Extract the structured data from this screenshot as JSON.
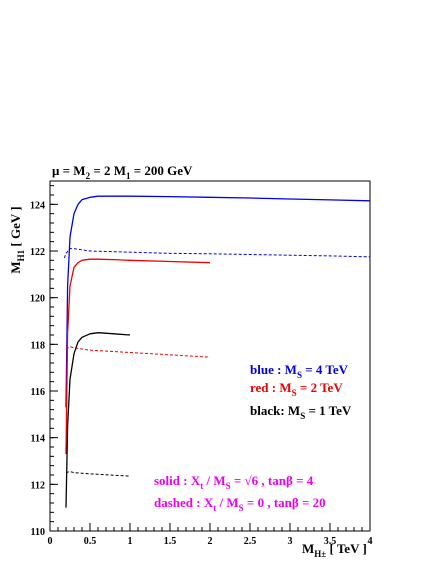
{
  "chart_data": {
    "type": "line",
    "title": "μ = M₂ = 2 M₁ = 200 GeV",
    "xlabel": "M_H± [ TeV ]",
    "ylabel": "M_H1 [ GeV ]",
    "xlim": [
      0,
      4
    ],
    "ylim": [
      110,
      125
    ],
    "xticks": [
      0,
      0.5,
      1,
      1.5,
      2,
      2.5,
      3,
      3.5,
      4
    ],
    "xtick_labels": [
      "0",
      "0.5",
      "1",
      "1.5",
      "2",
      "2.5",
      "3",
      "3.5",
      "4"
    ],
    "yticks": [
      110,
      112,
      114,
      116,
      118,
      120,
      122,
      124
    ],
    "ytick_labels": [
      "110",
      "112",
      "114",
      "116",
      "118",
      "120",
      "122",
      "124"
    ],
    "grid": false,
    "series": [
      {
        "color": "#0000ee",
        "style": "solid",
        "x": [
          0.2,
          0.22,
          0.25,
          0.3,
          0.35,
          0.4,
          0.5,
          0.6,
          0.8,
          1.0,
          1.5,
          2.0,
          2.5,
          3.0,
          3.5,
          4.0
        ],
        "y": [
          115.3,
          120.5,
          122.6,
          123.6,
          124.0,
          124.2,
          124.3,
          124.35,
          124.35,
          124.35,
          124.33,
          124.3,
          124.27,
          124.23,
          124.19,
          124.15
        ]
      },
      {
        "color": "#0000ee",
        "style": "dashed",
        "x": [
          0.18,
          0.2,
          0.25,
          0.3,
          0.5,
          1.0,
          1.5,
          2.0,
          2.5,
          3.0,
          3.5,
          4.0
        ],
        "y": [
          121.7,
          121.9,
          122.1,
          122.1,
          122.0,
          121.95,
          121.9,
          121.88,
          121.85,
          121.82,
          121.79,
          121.75
        ]
      },
      {
        "color": "#ee0000",
        "style": "solid",
        "x": [
          0.2,
          0.22,
          0.25,
          0.3,
          0.35,
          0.4,
          0.5,
          0.6,
          0.8,
          1.0,
          1.5,
          2.0
        ],
        "y": [
          113.3,
          118.5,
          120.5,
          121.3,
          121.5,
          121.6,
          121.65,
          121.65,
          121.63,
          121.6,
          121.55,
          121.5
        ]
      },
      {
        "color": "#ee0000",
        "style": "dashed",
        "x": [
          0.2,
          0.25,
          0.3,
          0.5,
          1.0,
          1.5,
          2.0
        ],
        "y": [
          117.8,
          117.9,
          117.85,
          117.75,
          117.65,
          117.55,
          117.45
        ]
      },
      {
        "color": "#000000",
        "style": "solid",
        "x": [
          0.2,
          0.22,
          0.25,
          0.3,
          0.35,
          0.4,
          0.5,
          0.6,
          0.8,
          1.0
        ],
        "y": [
          111.0,
          114.5,
          116.5,
          117.6,
          118.1,
          118.3,
          118.45,
          118.5,
          118.45,
          118.4
        ]
      },
      {
        "color": "#000000",
        "style": "dashed",
        "x": [
          0.2,
          0.25,
          0.3,
          0.5,
          0.75,
          1.0
        ],
        "y": [
          112.5,
          112.55,
          112.5,
          112.45,
          112.4,
          112.35
        ]
      }
    ],
    "annotations": [
      {
        "text": "blue : M_S = 4 TeV",
        "color": "#0000ee"
      },
      {
        "text": "red  : M_S = 2 TeV",
        "color": "#ee0000"
      },
      {
        "text": "black: M_S = 1 TeV",
        "color": "#000000"
      },
      {
        "text": "solid   : X_t / M_S = √6 , tanβ = 4",
        "color": "#ee00ee"
      },
      {
        "text": "dashed : X_t / M_S = 0 , tanβ = 20",
        "color": "#ee00ee"
      }
    ]
  }
}
